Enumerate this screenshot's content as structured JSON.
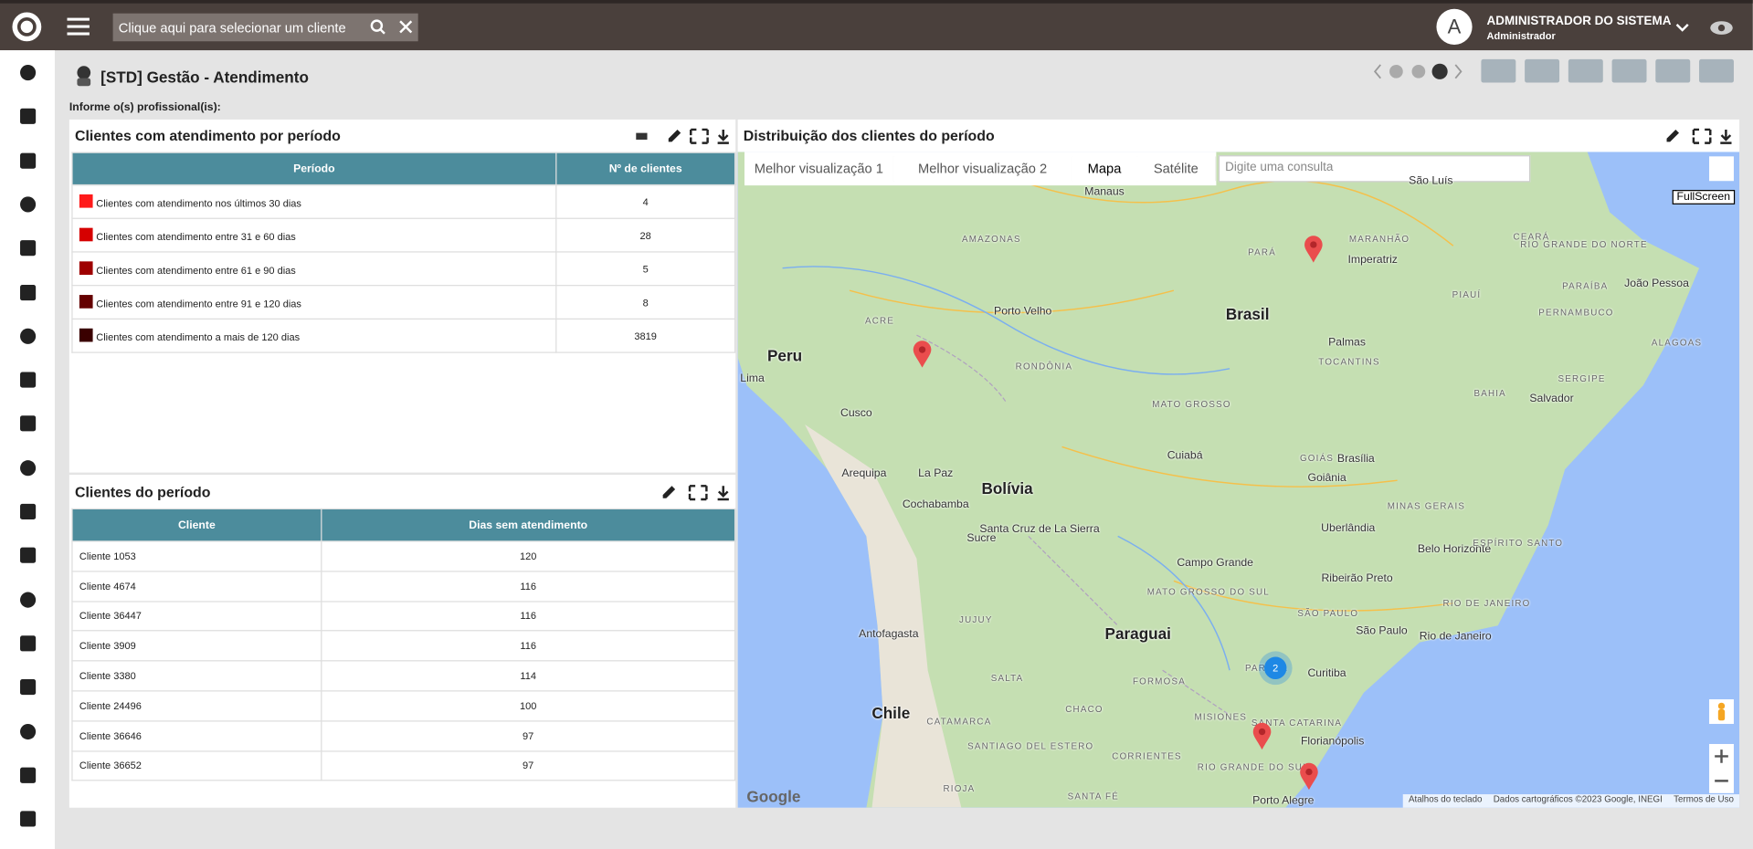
{
  "header": {
    "search_placeholder": "Clique aqui para selecionar um cliente",
    "user_initial": "A",
    "user_name": "ADMINISTRADOR DO SISTEMA",
    "user_role": "Administrador"
  },
  "page": {
    "title": "[STD] Gestão - Atendimento",
    "prompt": "Informe o(s) profissional(is):"
  },
  "period_panel": {
    "title": "Clientes com atendimento por período",
    "columns": [
      "Período",
      "Nº de clientes"
    ],
    "rows": [
      {
        "label": "Clientes com atendimento nos últimos 30 dias",
        "color": "#ff1a1a",
        "count": "4"
      },
      {
        "label": "Clientes com atendimento entre 31 e 60 dias",
        "color": "#d60000",
        "count": "28"
      },
      {
        "label": "Clientes com atendimento entre 61 e 90 dias",
        "color": "#9e0000",
        "count": "5"
      },
      {
        "label": "Clientes com atendimento entre 91 e 120 dias",
        "color": "#640000",
        "count": "8"
      },
      {
        "label": "Clientes com atendimento a mais de 120 dias",
        "color": "#3a0000",
        "count": "3819"
      }
    ]
  },
  "clients_panel": {
    "title": "Clientes do período",
    "columns": [
      "Cliente",
      "Dias sem atendimento"
    ],
    "rows": [
      [
        "Cliente 1053",
        "120"
      ],
      [
        "Cliente 4674",
        "116"
      ],
      [
        "Cliente 36447",
        "116"
      ],
      [
        "Cliente 3909",
        "116"
      ],
      [
        "Cliente 3380",
        "114"
      ],
      [
        "Cliente 24496",
        "100"
      ],
      [
        "Cliente 36646",
        "97"
      ],
      [
        "Cliente 36652",
        "97"
      ]
    ]
  },
  "map_panel": {
    "title": "Distribuição dos clientes do período",
    "buttons": [
      "Melhor visualização 1",
      "Melhor visualização 2",
      "Mapa",
      "Satélite"
    ],
    "search_placeholder": "Digite uma consulta",
    "fullscreen": "FullScreen",
    "cluster": "2",
    "logo": "Google",
    "attribution": [
      "Atalhos do teclado",
      "Dados cartográficos ©2023 Google, INEGI",
      "Termos de Uso"
    ],
    "places": [
      "Manaus",
      "AMAZONAS",
      "PARÁ",
      "MARANHÃO",
      "CEARÁ",
      "RIO GRANDE DO NORTE",
      "São Luís",
      "Imperatriz",
      "PIAUÍ",
      "PARAÍBA",
      "João Pessoa",
      "PERNAMBUCO",
      "ALAGOAS",
      "Brasil",
      "Palmas",
      "TOCANTINS",
      "ACRE",
      "Porto Velho",
      "RONDÔNIA",
      "Peru",
      "Lima",
      "SERGIPE",
      "BAHIA",
      "Salvador",
      "MATO GROSSO",
      "Cusco",
      "Cuiabá",
      "GOIÁS",
      "Brasília",
      "Goiânia",
      "Arequipa",
      "La Paz",
      "Bolívia",
      "Cochabamba",
      "MINAS GERAIS",
      "Santa Cruz de La Sierra",
      "Sucre",
      "Uberlândia",
      "Belo Horizonte",
      "ESPÍRITO SANTO",
      "Campo Grande",
      "MATO GROSSO DO SUL",
      "Ribeirão Preto",
      "SÃO PAULO",
      "RIO DE JANEIRO",
      "JUJUY",
      "Antofagasta",
      "Paraguai",
      "São Paulo",
      "Rio de Janeiro",
      "SALTA",
      "FORMOSA",
      "PARANÁ",
      "Curitiba",
      "Chile",
      "CHACO",
      "MISIONES",
      "SANTA CATARINA",
      "CATAMARCA",
      "Florianópolis",
      "SANTIAGO DEL ESTERO",
      "CORRIENTES",
      "RIO GRANDE DO SUL",
      "RIOJA",
      "SANTA FÉ",
      "Porto Alegre"
    ]
  }
}
